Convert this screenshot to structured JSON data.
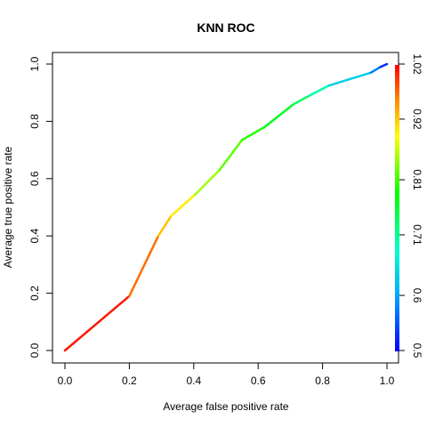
{
  "chart_data": {
    "type": "line",
    "title": "KNN ROC",
    "xlabel": "Average false positive rate",
    "ylabel": "Average true positive rate",
    "xlim": [
      0,
      1
    ],
    "ylim": [
      0,
      1
    ],
    "x_ticks": [
      "0.0",
      "0.2",
      "0.4",
      "0.6",
      "0.8",
      "1.0"
    ],
    "y_ticks": [
      "0.0",
      "0.2",
      "0.4",
      "0.6",
      "0.8",
      "1.0"
    ],
    "colorbar": {
      "range": [
        0.5,
        1.02
      ],
      "ticks": [
        "0.5",
        "0.6",
        "0.71",
        "0.81",
        "0.92",
        "1.02"
      ],
      "colormap": "rainbow (blue to red)"
    },
    "grid": false,
    "legend": "none",
    "series": [
      {
        "points": [
          {
            "x": 0.0,
            "y": 0.0,
            "c": 1.02
          },
          {
            "x": 0.2,
            "y": 0.19,
            "c": 1.0
          },
          {
            "x": 0.29,
            "y": 0.4,
            "c": 0.94
          },
          {
            "x": 0.33,
            "y": 0.47,
            "c": 0.91
          },
          {
            "x": 0.4,
            "y": 0.54,
            "c": 0.89
          },
          {
            "x": 0.405,
            "y": 0.545,
            "c": 0.86
          },
          {
            "x": 0.48,
            "y": 0.63,
            "c": 0.84
          },
          {
            "x": 0.55,
            "y": 0.735,
            "c": 0.81
          },
          {
            "x": 0.62,
            "y": 0.78,
            "c": 0.79
          },
          {
            "x": 0.71,
            "y": 0.86,
            "c": 0.75
          },
          {
            "x": 0.76,
            "y": 0.89,
            "c": 0.72
          },
          {
            "x": 0.82,
            "y": 0.925,
            "c": 0.68
          },
          {
            "x": 0.95,
            "y": 0.97,
            "c": 0.6
          },
          {
            "x": 0.98,
            "y": 0.99,
            "c": 0.55
          },
          {
            "x": 1.0,
            "y": 1.0,
            "c": 0.5
          }
        ]
      }
    ]
  }
}
